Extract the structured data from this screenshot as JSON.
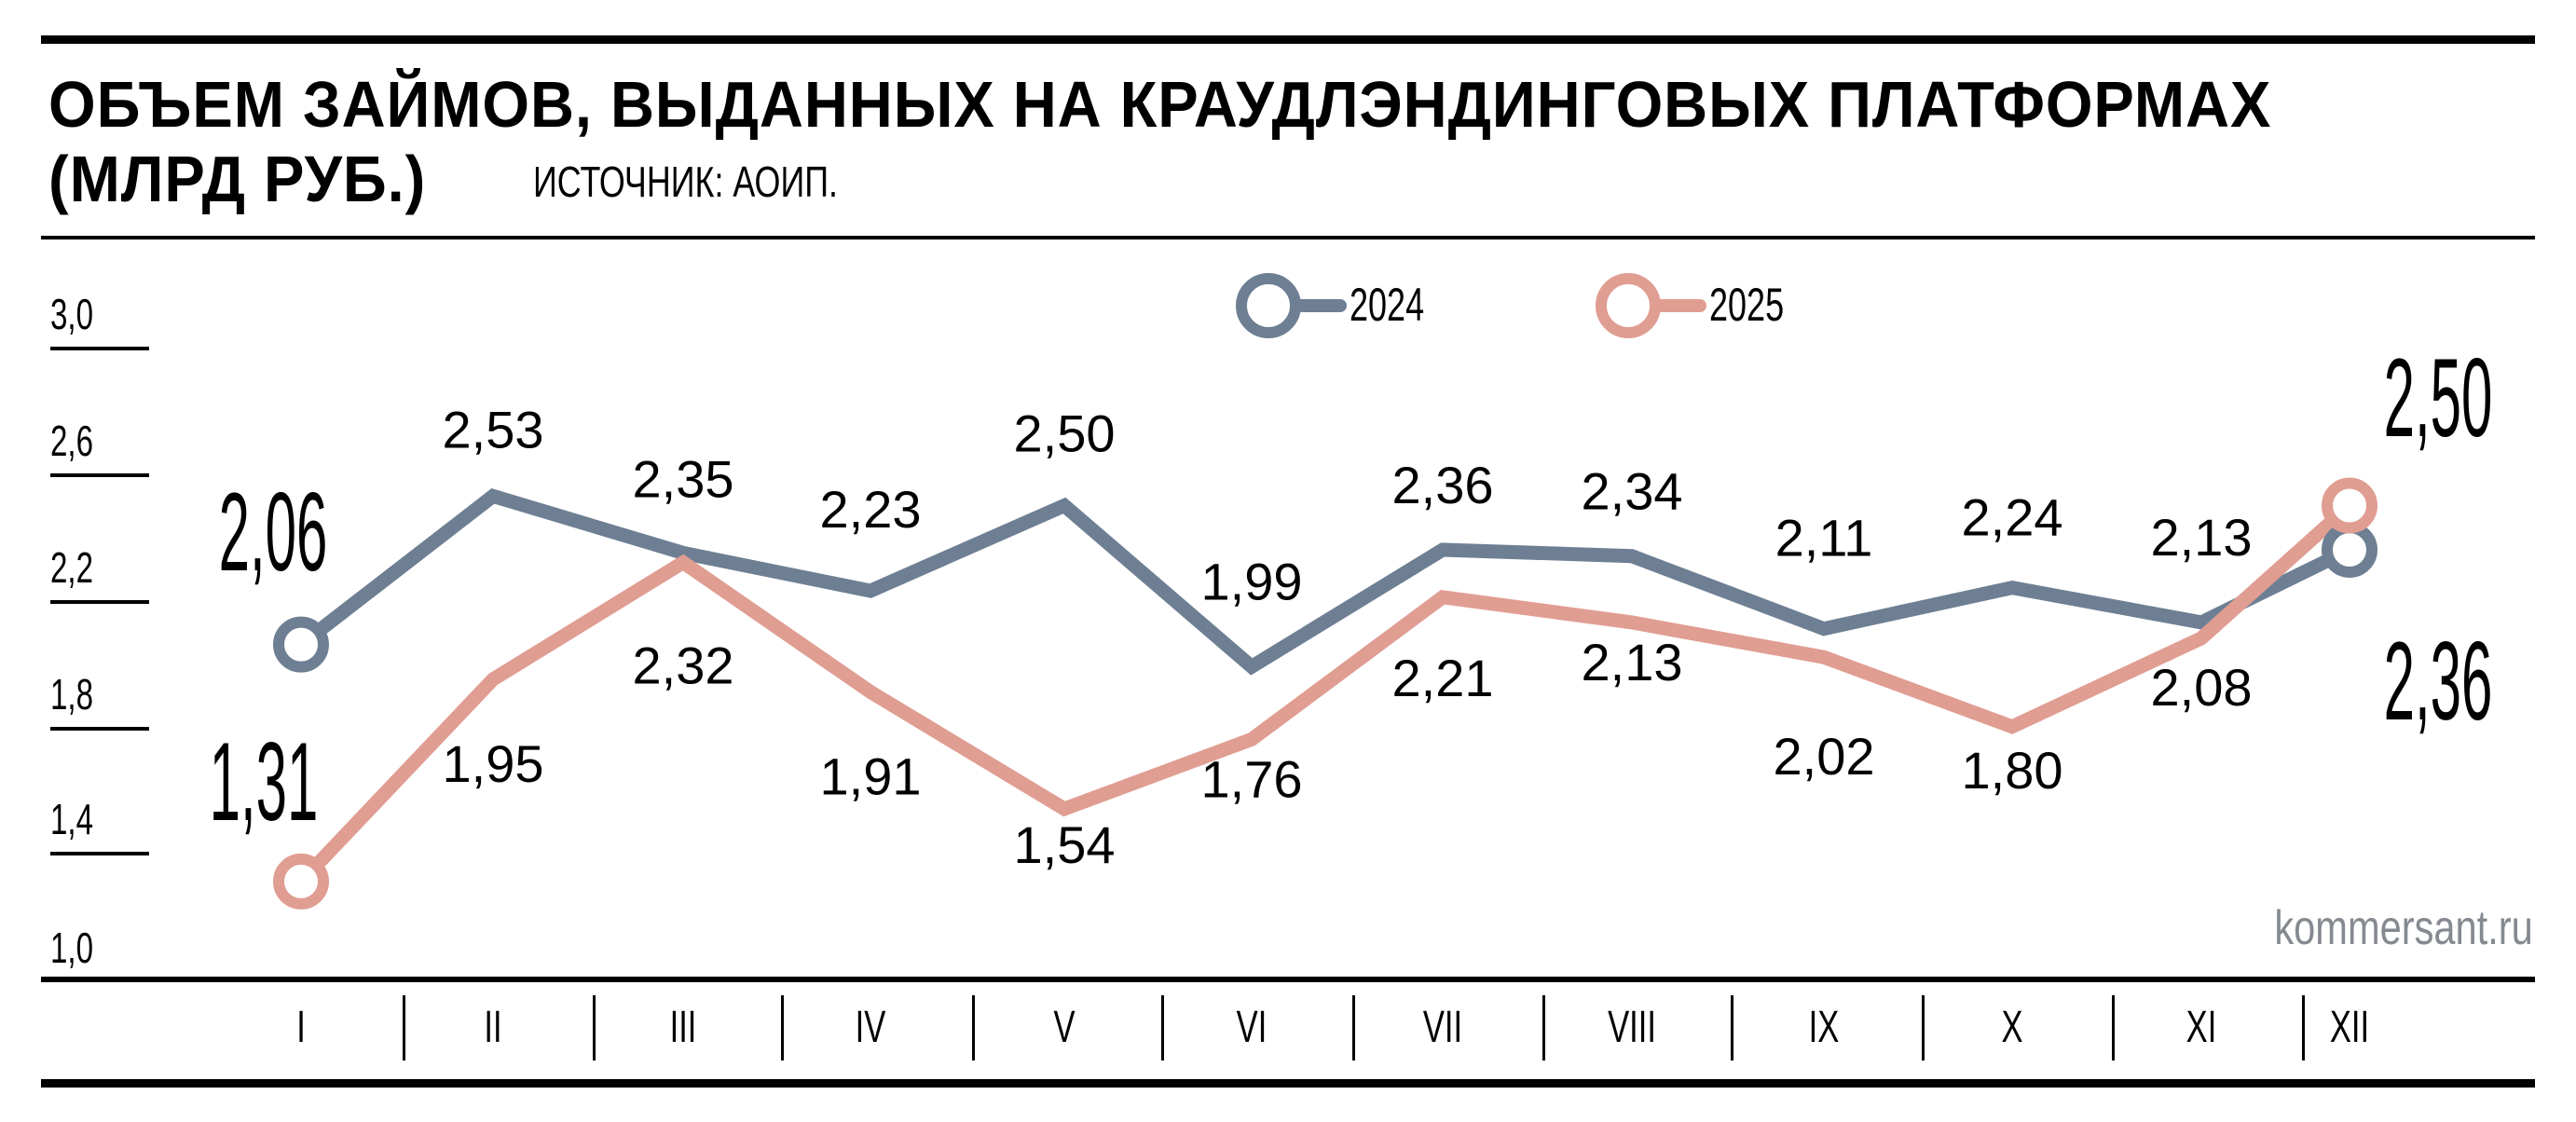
{
  "header": {
    "title_line1": "ОБЪЕМ ЗАЙМОВ, ВЫДАННЫХ НА КРАУДЛЭНДИНГОВЫХ ПЛАТФОРМАХ",
    "title_line2": "(МЛРД РУБ.)",
    "source": "ИСТОЧНИК: АОИП."
  },
  "legend": {
    "items": [
      {
        "label": "2024",
        "color": "#6e7f93"
      },
      {
        "label": "2025",
        "color": "#e09d92"
      }
    ]
  },
  "y_axis": {
    "ticks": [
      "3,0",
      "2,6",
      "2,2",
      "1,8",
      "1,4",
      "1,0"
    ]
  },
  "x_axis": {
    "months": [
      "I",
      "II",
      "III",
      "IV",
      "V",
      "VI",
      "VII",
      "VIII",
      "IX",
      "X",
      "XI",
      "XII"
    ]
  },
  "watermark": "kommersant.ru",
  "colors": {
    "series_2024": "#6e7f93",
    "series_2025": "#e09d92",
    "watermark": "#858a91"
  },
  "chart_data": {
    "type": "line",
    "title": "Объем займов, выданных на краудлэндинговых платформах (млрд руб.)",
    "subtitle": "Источник: АОИП.",
    "xlabel": "",
    "ylabel": "млрд руб.",
    "categories": [
      "I",
      "II",
      "III",
      "IV",
      "V",
      "VI",
      "VII",
      "VIII",
      "IX",
      "X",
      "XI",
      "XII"
    ],
    "series": [
      {
        "name": "2024",
        "color": "#6e7f93",
        "values": [
          2.06,
          2.53,
          2.35,
          2.23,
          2.5,
          1.99,
          2.36,
          2.34,
          2.11,
          2.24,
          2.13,
          2.36
        ],
        "labels": [
          "2,06",
          "2,53",
          "2,35",
          "2,23",
          "2,50",
          "1,99",
          "2,36",
          "2,34",
          "2,11",
          "2,24",
          "2,13",
          "2,36"
        ]
      },
      {
        "name": "2025",
        "color": "#e09d92",
        "values": [
          1.31,
          1.95,
          2.32,
          1.91,
          1.54,
          1.76,
          2.21,
          2.13,
          2.02,
          1.8,
          2.08,
          2.5
        ],
        "labels": [
          "1,31",
          "1,95",
          "2,32",
          "1,91",
          "1,54",
          "1,76",
          "2,21",
          "2,13",
          "2,02",
          "1,80",
          "2,08",
          "2,50"
        ]
      }
    ],
    "ylim": [
      1.0,
      3.0
    ],
    "yticks": [
      1.0,
      1.4,
      1.8,
      2.2,
      2.6,
      3.0
    ],
    "grid": false,
    "legend_position": "top-center",
    "annotations": [
      "Endpoint labels for I and XII shown in large condensed type"
    ]
  }
}
